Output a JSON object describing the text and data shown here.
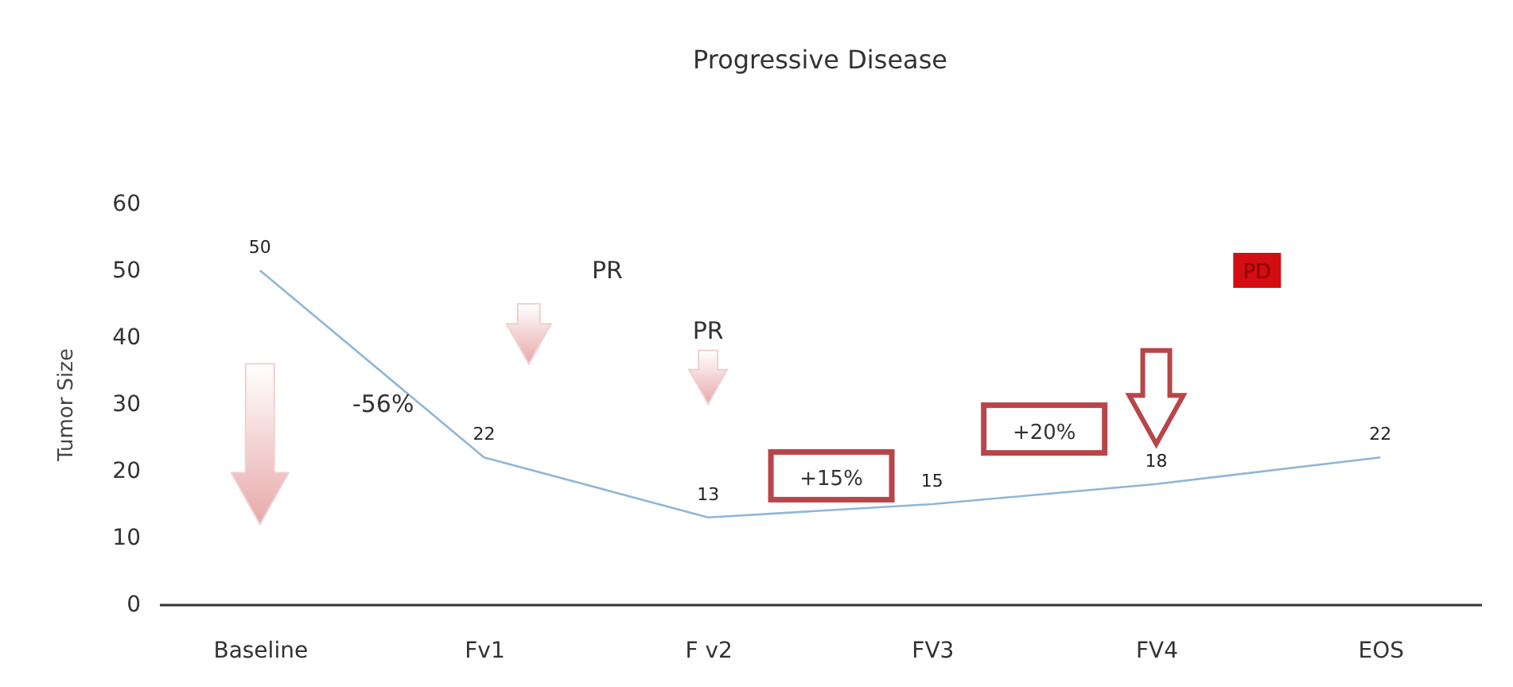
{
  "chart_data": {
    "type": "line",
    "title": "Progressive Disease",
    "ylabel": "Tumor Size",
    "categories": [
      "Baseline",
      "Fv1",
      "F v2",
      "FV3",
      "FV4",
      "EOS"
    ],
    "series": [
      {
        "color": "#8fb6d8",
        "values": [
          50,
          22,
          13,
          15,
          18,
          22
        ]
      }
    ],
    "ylim": [
      0,
      60
    ],
    "yticks": [
      0,
      10,
      20,
      30,
      40,
      50,
      60
    ],
    "grid": false,
    "marker": "none",
    "data_labels": true,
    "annotations": [
      "-56%",
      "PR",
      "PR",
      "+15%",
      "+20%",
      "PD"
    ]
  }
}
